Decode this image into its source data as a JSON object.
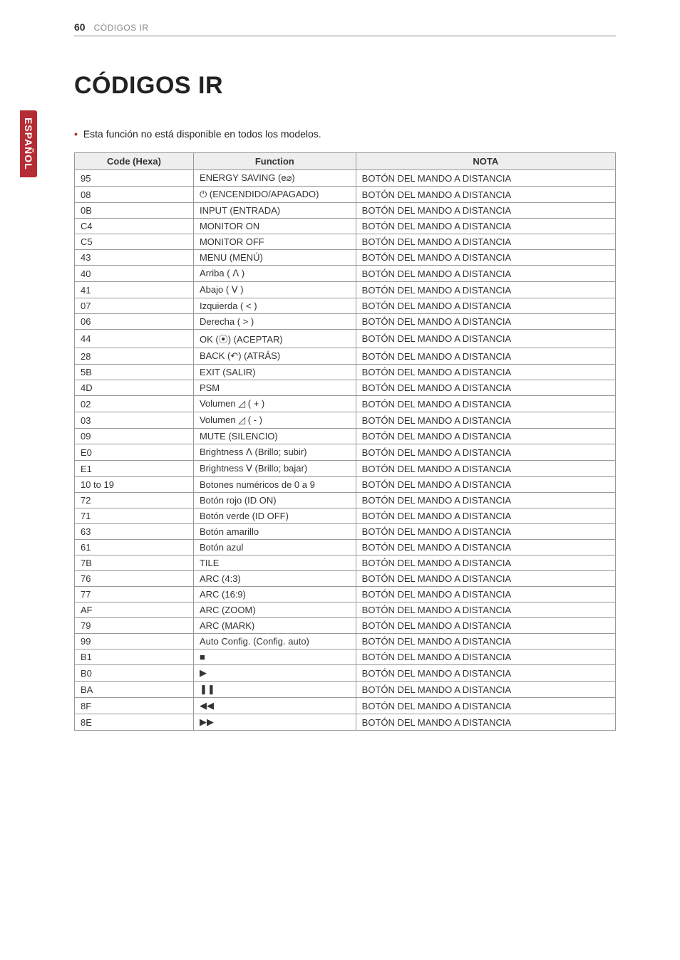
{
  "page": {
    "number": "60",
    "section_label": "CÓDIGOS IR",
    "sidebar_tab": "ESPAÑOL"
  },
  "title": "CÓDIGOS IR",
  "note": "Esta función no está disponible en todos los modelos.",
  "table": {
    "headers": {
      "code": "Code (Hexa)",
      "function": "Function",
      "nota": "NOTA"
    },
    "col_widths": {
      "code": "22%",
      "function": "30%",
      "nota": "48%"
    },
    "rows": [
      {
        "code": "95",
        "func": "ENERGY SAVING (e⌀)",
        "nota": "BOTÓN DEL MANDO A DISTANCIA"
      },
      {
        "code": "08",
        "func": "⏻ (ENCENDIDO/APAGADO)",
        "nota": "BOTÓN DEL MANDO A DISTANCIA"
      },
      {
        "code": "0B",
        "func": "INPUT (ENTRADA)",
        "nota": "BOTÓN DEL MANDO A DISTANCIA"
      },
      {
        "code": "C4",
        "func": "MONITOR ON",
        "nota": "BOTÓN DEL MANDO A DISTANCIA"
      },
      {
        "code": "C5",
        "func": "MONITOR OFF",
        "nota": "BOTÓN DEL MANDO A DISTANCIA"
      },
      {
        "code": "43",
        "func": "MENU (MENÚ)",
        "nota": "BOTÓN DEL MANDO A DISTANCIA"
      },
      {
        "code": "40",
        "func": "Arriba ( ꓥ )",
        "nota": "BOTÓN DEL MANDO A DISTANCIA"
      },
      {
        "code": "41",
        "func": "Abajo ( ꓦ )",
        "nota": "BOTÓN DEL MANDO A DISTANCIA"
      },
      {
        "code": "07",
        "func": "Izquierda ( < )",
        "nota": "BOTÓN DEL MANDO A DISTANCIA"
      },
      {
        "code": "06",
        "func": "Derecha ( > )",
        "nota": "BOTÓN DEL MANDO A DISTANCIA"
      },
      {
        "code": "44",
        "func": "OK (⦿) (ACEPTAR)",
        "nota": "BOTÓN DEL MANDO A DISTANCIA"
      },
      {
        "code": "28",
        "func": "BACK (↶) (ATRÁS)",
        "nota": "BOTÓN DEL MANDO A DISTANCIA"
      },
      {
        "code": "5B",
        "func": "EXIT (SALIR)",
        "nota": "BOTÓN DEL MANDO A DISTANCIA"
      },
      {
        "code": "4D",
        "func": "PSM",
        "nota": "BOTÓN DEL MANDO A DISTANCIA"
      },
      {
        "code": "02",
        "func": "Volumen ◿ ( + )",
        "nota": "BOTÓN DEL MANDO A DISTANCIA"
      },
      {
        "code": "03",
        "func": "Volumen ◿ ( - )",
        "nota": "BOTÓN DEL MANDO A DISTANCIA"
      },
      {
        "code": "09",
        "func": "MUTE (SILENCIO)",
        "nota": "BOTÓN DEL MANDO A DISTANCIA"
      },
      {
        "code": "E0",
        "func": "Brightness ꓥ (Brillo; subir)",
        "nota": "BOTÓN DEL MANDO A DISTANCIA"
      },
      {
        "code": "E1",
        "func": "Brightness ꓦ (Brillo; bajar)",
        "nota": "BOTÓN DEL MANDO A DISTANCIA"
      },
      {
        "code": "10 to 19",
        "func": "Botones numéricos de 0 a 9",
        "nota": "BOTÓN DEL MANDO A DISTANCIA"
      },
      {
        "code": "72",
        "func": "Botón rojo (ID ON)",
        "nota": "BOTÓN DEL MANDO A DISTANCIA"
      },
      {
        "code": "71",
        "func": "Botón verde (ID OFF)",
        "nota": "BOTÓN DEL MANDO A DISTANCIA"
      },
      {
        "code": "63",
        "func": "Botón amarillo",
        "nota": "BOTÓN DEL MANDO A DISTANCIA"
      },
      {
        "code": "61",
        "func": "Botón azul",
        "nota": "BOTÓN DEL MANDO A DISTANCIA"
      },
      {
        "code": "7B",
        "func": "TILE",
        "nota": "BOTÓN DEL MANDO A DISTANCIA"
      },
      {
        "code": "76",
        "func": "ARC (4:3)",
        "nota": "BOTÓN DEL MANDO A DISTANCIA"
      },
      {
        "code": "77",
        "func": "ARC (16:9)",
        "nota": "BOTÓN DEL MANDO A DISTANCIA"
      },
      {
        "code": "AF",
        "func": "ARC (ZOOM)",
        "nota": "BOTÓN DEL MANDO A DISTANCIA"
      },
      {
        "code": "79",
        "func": "ARC (MARK)",
        "nota": "BOTÓN DEL MANDO A DISTANCIA"
      },
      {
        "code": "99",
        "func": "Auto Config. (Config. auto)",
        "nota": "BOTÓN DEL MANDO A DISTANCIA"
      },
      {
        "code": "B1",
        "func": "■",
        "nota": "BOTÓN DEL MANDO A DISTANCIA"
      },
      {
        "code": "B0",
        "func": "▶",
        "nota": "BOTÓN DEL MANDO A DISTANCIA"
      },
      {
        "code": "BA",
        "func": "❚❚",
        "nota": "BOTÓN DEL MANDO A DISTANCIA"
      },
      {
        "code": "8F",
        "func": "◀◀",
        "nota": "BOTÓN DEL MANDO A DISTANCIA"
      },
      {
        "code": "8E",
        "func": "▶▶",
        "nota": "BOTÓN DEL MANDO A DISTANCIA"
      }
    ]
  },
  "style": {
    "accent_color": "#b52c35",
    "header_bg": "#eeeeee",
    "border_color": "#999999",
    "text_color": "#333333",
    "title_fontsize": 34,
    "body_fontsize": 13
  }
}
